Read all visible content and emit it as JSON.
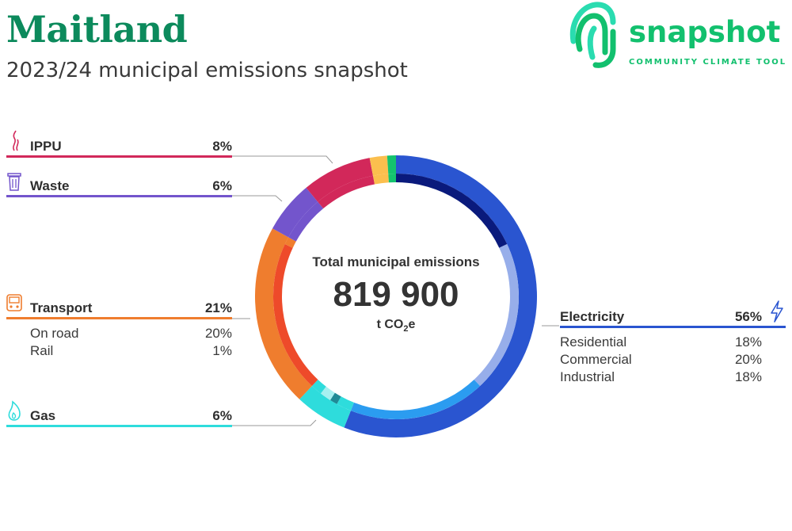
{
  "header": {
    "title": "Maitland",
    "subtitle": "2023/24 municipal emissions snapshot"
  },
  "logo": {
    "word": "snapshot",
    "tagline": "COMMUNITY CLIMATE TOOL"
  },
  "center": {
    "label": "Total municipal emissions",
    "value": "819 900",
    "unit_prefix": "t CO",
    "unit_sub": "2",
    "unit_suffix": "e"
  },
  "colors": {
    "electricity": "#2a55d0",
    "electricity_residential": "#0a1a7c",
    "electricity_commercial": "#97aeea",
    "electricity_industrial": "#2b9cf0",
    "gas": "#2edcdc",
    "gas_inner_a": "#1f8a96",
    "gas_inner_b": "#a6f0f0",
    "transport": "#ef7d2e",
    "transport_on_road": "#ee4a2a",
    "transport_rail": "#f07e2e",
    "waste": "#7355cc",
    "ippu": "#d2285a",
    "agriculture_yellow": "#fbbf4e",
    "other_green": "#14c36e",
    "brand_green": "#12c06e",
    "title_green": "#0c8a5c"
  },
  "legend": {
    "ippu": {
      "name": "IPPU",
      "pct": "8%",
      "icon": "smokestack-icon"
    },
    "waste": {
      "name": "Waste",
      "pct": "6%",
      "icon": "trash-bin-icon"
    },
    "transport": {
      "name": "Transport",
      "pct": "21%",
      "icon": "train-icon",
      "subs": [
        {
          "label": "On road",
          "pct": "20%"
        },
        {
          "label": "Rail",
          "pct": "1%"
        }
      ]
    },
    "gas": {
      "name": "Gas",
      "pct": "6%",
      "icon": "flame-icon"
    },
    "electricity": {
      "name": "Electricity",
      "pct": "56%",
      "icon": "lightning-bolt-icon",
      "subs": [
        {
          "label": "Residential",
          "pct": "18%"
        },
        {
          "label": "Commercial",
          "pct": "20%"
        },
        {
          "label": "Industrial",
          "pct": "18%"
        }
      ]
    }
  },
  "chart_data": {
    "type": "pie",
    "title": "Total municipal emissions",
    "total": 819900,
    "unit": "t CO2e",
    "start_angle_deg": 0,
    "direction": "clockwise",
    "outer_ring": [
      {
        "name": "Electricity",
        "value": 56,
        "color": "#2a55d0"
      },
      {
        "name": "Gas",
        "value": 6,
        "color": "#2edcdc"
      },
      {
        "name": "Transport",
        "value": 21,
        "color": "#ef7d2e"
      },
      {
        "name": "Waste",
        "value": 6,
        "color": "#7355cc"
      },
      {
        "name": "IPPU",
        "value": 8,
        "color": "#d2285a"
      },
      {
        "name": "",
        "value": 2,
        "color": "#fbbf4e"
      },
      {
        "name": "",
        "value": 1,
        "color": "#14c36e"
      }
    ],
    "inner_ring": [
      {
        "name": "Residential",
        "value": 18,
        "color": "#0a1a7c"
      },
      {
        "name": "Commercial",
        "value": 20,
        "color": "#97aeea"
      },
      {
        "name": "Industrial",
        "value": 18,
        "color": "#2b9cf0"
      },
      {
        "name": "",
        "value": 2,
        "color": "#2edcdc"
      },
      {
        "name": "",
        "value": 1,
        "color": "#1f8a96"
      },
      {
        "name": "",
        "value": 1.5,
        "color": "#a6f0f0"
      },
      {
        "name": "",
        "value": 1.5,
        "color": "#2edcdc"
      },
      {
        "name": "On road",
        "value": 20,
        "color": "#ee4a2a"
      },
      {
        "name": "Rail",
        "value": 1,
        "color": "#f07e2e"
      },
      {
        "name": "",
        "value": 6,
        "color": "#7355cc"
      },
      {
        "name": "",
        "value": 8,
        "color": "#d2285a"
      },
      {
        "name": "",
        "value": 2,
        "color": "#fbbf4e"
      },
      {
        "name": "",
        "value": 1,
        "color": "#14c36e"
      }
    ]
  }
}
